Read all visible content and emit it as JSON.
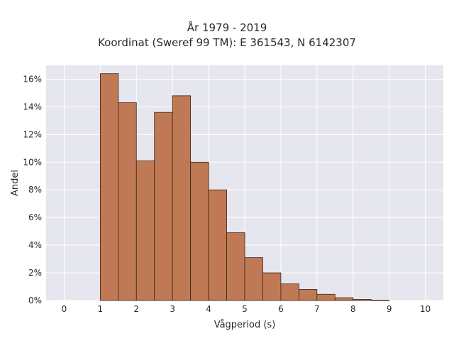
{
  "chart_data": {
    "type": "bar",
    "title": "År 1979 - 2019",
    "subtitle": "Koordinat (Sweref 99 TM): E 361543, N 6142307",
    "xlabel": "Vågperiod (s)",
    "ylabel": "Andel",
    "xlim": [
      -0.5,
      10.5
    ],
    "ylim": [
      0,
      17
    ],
    "x_ticks": [
      0,
      1,
      2,
      3,
      4,
      5,
      6,
      7,
      8,
      9,
      10
    ],
    "y_ticks": [
      0,
      2,
      4,
      6,
      8,
      10,
      12,
      14,
      16
    ],
    "y_tick_suffix": "%",
    "bin_width": 0.5,
    "bins": [
      {
        "start": 1.0,
        "value": 16.4
      },
      {
        "start": 1.5,
        "value": 14.3
      },
      {
        "start": 2.0,
        "value": 10.1
      },
      {
        "start": 2.5,
        "value": 13.6
      },
      {
        "start": 3.0,
        "value": 14.8
      },
      {
        "start": 3.5,
        "value": 10.0
      },
      {
        "start": 4.0,
        "value": 8.0
      },
      {
        "start": 4.5,
        "value": 4.9
      },
      {
        "start": 5.0,
        "value": 3.1
      },
      {
        "start": 5.5,
        "value": 2.0
      },
      {
        "start": 6.0,
        "value": 1.2
      },
      {
        "start": 6.5,
        "value": 0.8
      },
      {
        "start": 7.0,
        "value": 0.45
      },
      {
        "start": 7.5,
        "value": 0.2
      },
      {
        "start": 8.0,
        "value": 0.08
      },
      {
        "start": 8.5,
        "value": 0.03
      }
    ],
    "grid": true,
    "colors": {
      "bar_fill": "#bf7a55",
      "bar_edge": "#3a2318",
      "plot_bg": "#e6e6ef",
      "grid": "#ffffff"
    }
  }
}
